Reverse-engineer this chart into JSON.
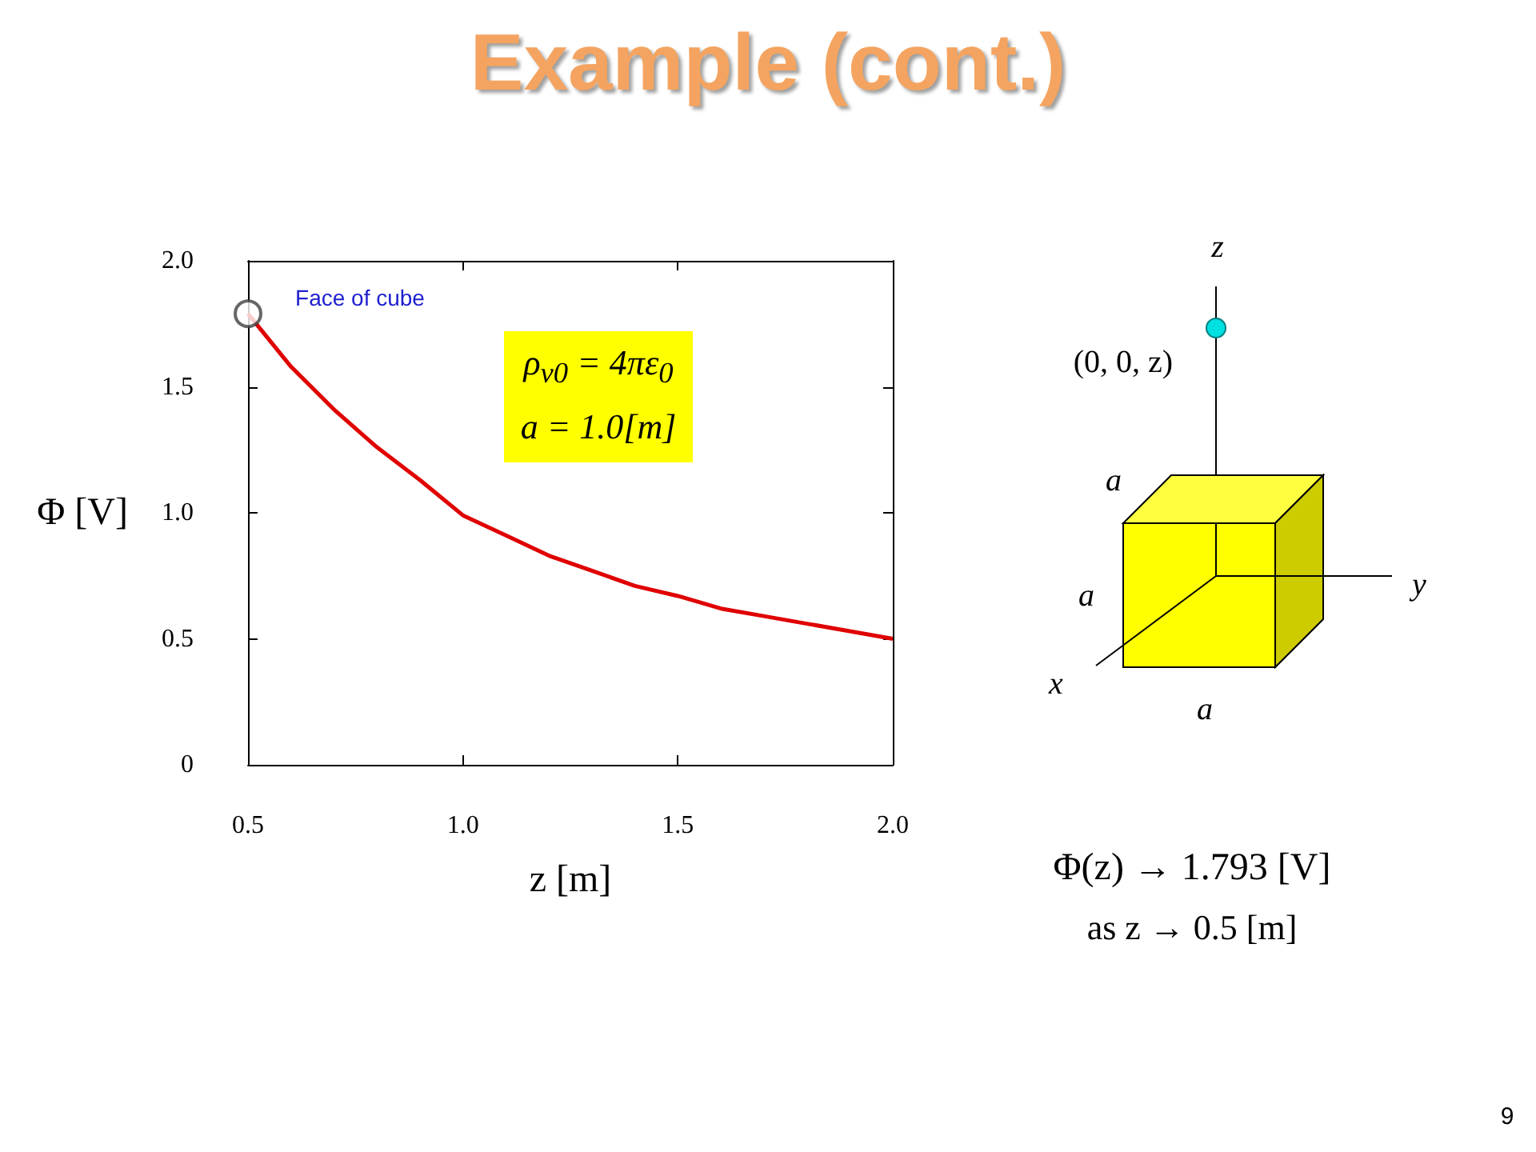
{
  "chart_data": {
    "type": "line",
    "title": "Example (cont.)",
    "xlabel": "z [m]",
    "ylabel": "Φ [V]",
    "x": [
      0.5,
      0.6,
      0.7,
      0.8,
      0.9,
      1.0,
      1.1,
      1.2,
      1.3,
      1.4,
      1.5,
      1.6,
      1.7,
      1.8,
      1.9,
      2.0
    ],
    "series": [
      {
        "color": "#e00000",
        "marker": "none",
        "values": [
          1.79,
          1.58,
          1.41,
          1.26,
          1.13,
          0.99,
          0.91,
          0.83,
          0.77,
          0.71,
          0.67,
          0.62,
          0.59,
          0.56,
          0.53,
          0.5
        ]
      },
      {
        "type": "scatter",
        "color": "#404040",
        "marker": "circle",
        "x": [
          0.5
        ],
        "values": [
          1.79
        ]
      }
    ],
    "xlim": [
      0.5,
      2.0
    ],
    "ylim": [
      0,
      2.0
    ],
    "xticks": [
      0.5,
      {
        "value": 1.0,
        "label": "1.0"
      },
      1.5,
      {
        "value": 2.0,
        "label": "2.0"
      }
    ],
    "yticks": [
      0,
      0.5,
      {
        "value": 1.0,
        "label": "1.0"
      },
      1.5,
      {
        "value": 2.0,
        "label": "2.0"
      }
    ],
    "grid": false,
    "annotations": [
      "Face of cube",
      "ρ$_{v0}$ = 4πε$_{0}$",
      "a = 1.0[m]",
      "z",
      "(0, 0, z)",
      "a",
      "a",
      "a",
      "x",
      "y",
      "Φ(z) → 1.793 [V]",
      "as z → 0.5 [m]",
      "9"
    ]
  }
}
